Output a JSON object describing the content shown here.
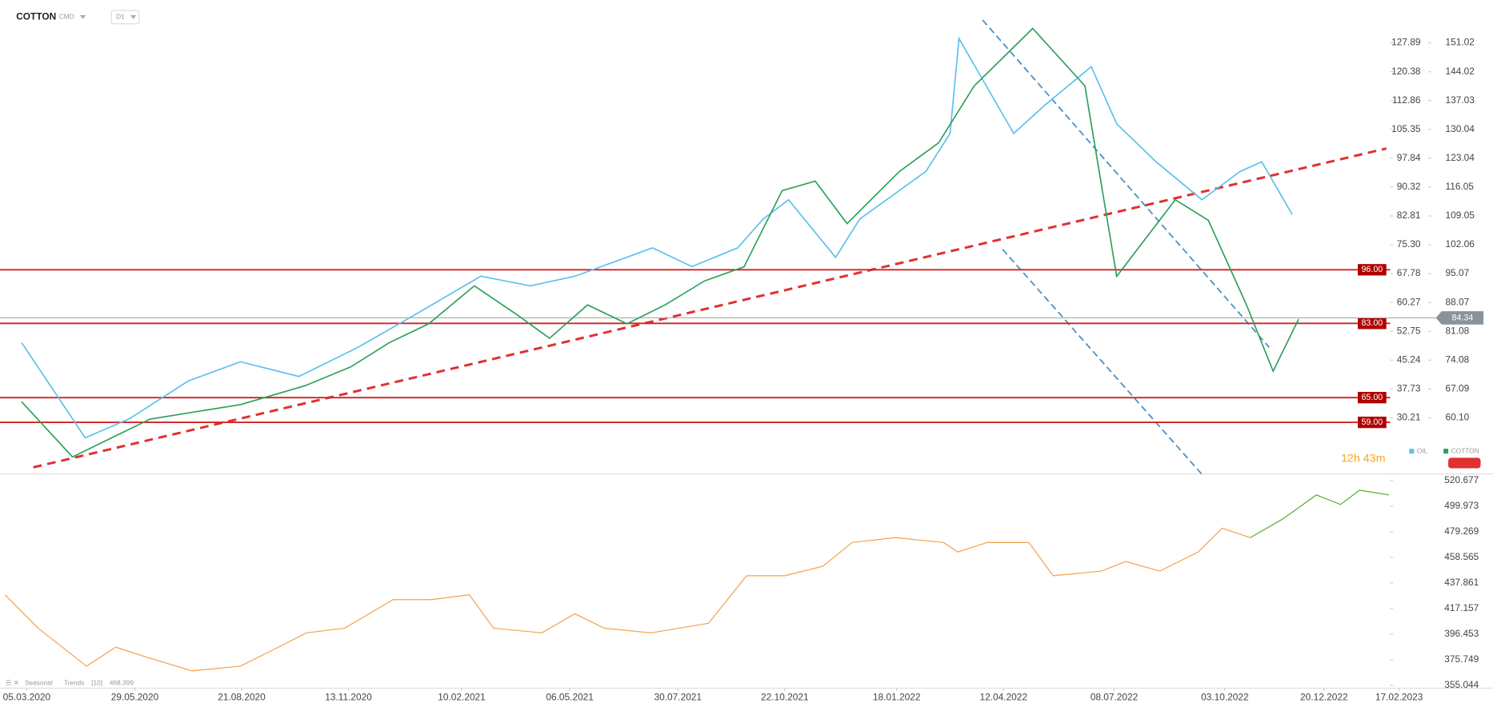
{
  "chart_data": [
    {
      "type": "line",
      "title": "COTTON",
      "market": "CMD",
      "interval": "D1",
      "countdown": "12h 43m",
      "xlim": [
        "13.02.2020",
        "10.02.2023"
      ],
      "ylim": [
        15.58,
        139.05
      ],
      "yticks": [
        127.89,
        120.38,
        112.86,
        105.35,
        97.84,
        90.32,
        82.81,
        {
          "value": 75.3,
          "label": "75.30"
        },
        67.78,
        60.27,
        52.75,
        45.24,
        37.73,
        30.21
      ],
      "y2lim": [
        46.48,
        161.41
      ],
      "y2ticks": [
        151.02,
        144.02,
        137.03,
        130.04,
        123.04,
        116.05,
        109.05,
        102.06,
        95.07,
        88.07,
        81.08,
        74.08,
        67.09,
        {
          "value": 60.1,
          "label": "60.10"
        }
      ],
      "legend": "bottom-right",
      "series": [
        {
          "name": "OIL",
          "color": "#5bc0eb",
          "x": [
            "01.03.2020",
            "20.04.2020",
            "25.05.2020",
            "10.07.2020",
            "20.08.2020",
            "05.10.2020",
            "20.11.2020",
            "05.01.2021",
            "25.02.2021",
            "05.04.2021",
            "10.05.2021",
            "10.07.2021",
            "10.08.2021",
            "15.09.2021",
            "05.10.2021",
            "25.10.2021",
            "01.12.2021",
            "20.12.2021",
            "10.02.2022",
            "01.03.2022",
            "08.03.2022",
            "20.04.2022",
            "15.05.2022",
            "20.06.2022",
            "10.07.2022",
            "10.08.2022",
            "15.09.2022",
            "15.10.2022",
            "01.11.2022",
            "25.11.2022"
          ],
          "values": [
            49.8,
            25,
            30,
            39.8,
            44.8,
            41,
            48.5,
            57.2,
            67.1,
            64.6,
            67.1,
            74.5,
            69.6,
            74.5,
            82,
            87,
            72,
            82,
            94.4,
            104.3,
            129,
            104.3,
            111.8,
            121.7,
            106.8,
            96.9,
            87,
            94.4,
            96.9,
            83.2
          ]
        },
        {
          "name": "COTTON",
          "color": "#2ca05a",
          "axis": "y2",
          "x": [
            "01.03.2020",
            "10.04.2020",
            "10.06.2020",
            "20.08.2020",
            "10.10.2020",
            "15.11.2020",
            "15.12.2020",
            "15.01.2021",
            "20.02.2021",
            "25.03.2021",
            "20.04.2021",
            "20.05.2021",
            "20.06.2021",
            "20.07.2021",
            "20.08.2021",
            "20.09.2021",
            "20.10.2021",
            "15.11.2021",
            "10.12.2021",
            "20.01.2022",
            "20.02.2022",
            "20.03.2022",
            "05.05.2022",
            "15.06.2022",
            "10.07.2022",
            "25.08.2022",
            "20.09.2022",
            "20.10.2022",
            "10.11.2022",
            "30.11.2022"
          ],
          "values": [
            64,
            50.6,
            59.8,
            63.3,
            67.9,
            72.5,
            78.3,
            82.9,
            92.1,
            85.2,
            79.4,
            87.5,
            82.9,
            87.5,
            93.3,
            96.7,
            115.2,
            117.5,
            107.2,
            119.8,
            126.8,
            140.6,
            154.5,
            140.6,
            94.4,
            113,
            108,
            87.5,
            71.4,
            84
          ]
        }
      ],
      "levels": [
        {
          "value": 96,
          "label": "96.00"
        },
        {
          "value": 83,
          "label": "83.00"
        },
        {
          "value": 65,
          "label": "65.00"
        },
        {
          "value": 59,
          "label": "59.00"
        }
      ],
      "last_price": {
        "value": 84.34,
        "label": "84.34"
      }
    },
    {
      "type": "line",
      "title": "Seasonal",
      "subtitle": "Trends",
      "period": "[10]",
      "current": "468.399",
      "xlim": [
        "13.02.2020",
        "10.02.2023"
      ],
      "xticks": [
        "05.03.2020",
        "29.05.2020",
        "21.08.2020",
        "13.11.2020",
        "10.02.2021",
        "06.05.2021",
        "30.07.2021",
        "22.10.2021",
        "18.01.2022",
        "12.04.2022",
        "08.07.2022",
        "03.10.2022",
        "20.12.2022",
        "17.02.2023"
      ],
      "ylim": [
        353.5,
        526.07
      ],
      "yticks": [
        520.677,
        499.973,
        479.269,
        458.565,
        437.861,
        417.157,
        396.453,
        375.749,
        355.044
      ],
      "series": [
        {
          "color": "#f5a04a",
          "x": [
            "17.02.2020",
            "14.03.2020",
            "21.04.2020",
            "14.05.2020",
            "06.06.2020",
            "13.07.2020",
            "20.08.2020",
            "19.09.2020",
            "11.10.2020",
            "10.11.2020",
            "18.12.2020",
            "17.01.2021",
            "16.02.2021",
            "07.03.2021",
            "14.04.2021",
            "10.05.2021",
            "02.06.2021",
            "09.07.2021",
            "23.08.2021",
            "22.09.2021",
            "22.10.2021",
            "21.11.2021",
            "14.12.2021",
            "17.01.2022",
            "24.02.2022",
            "07.03.2022",
            "30.03.2022",
            "02.05.2022",
            "21.05.2022",
            "28.06.2022",
            "17.07.2022",
            "13.08.2022",
            "12.09.2022",
            "01.10.2022",
            "23.10.2022"
          ],
          "values": [
            428.3,
            401.3,
            370.5,
            385.9,
            378.2,
            366.7,
            370.5,
            385.9,
            397.5,
            401.3,
            424.4,
            424.4,
            428.3,
            401.3,
            397.5,
            412.9,
            401.3,
            397.5,
            405.2,
            443.7,
            443.7,
            451.4,
            470.6,
            474.5,
            470.6,
            462.9,
            470.6,
            470.6,
            443.7,
            447.5,
            455.2,
            447.5,
            462.9,
            482.2,
            474.5
          ]
        },
        {
          "color": "#4caf2a",
          "x": [
            "23.10.2022",
            "18.11.2022",
            "14.12.2022",
            "02.01.2023",
            "17.01.2023",
            "09.02.2023"
          ],
          "values": [
            474.5,
            489.9,
            509.1,
            501.4,
            513,
            509.1
          ]
        }
      ]
    }
  ]
}
